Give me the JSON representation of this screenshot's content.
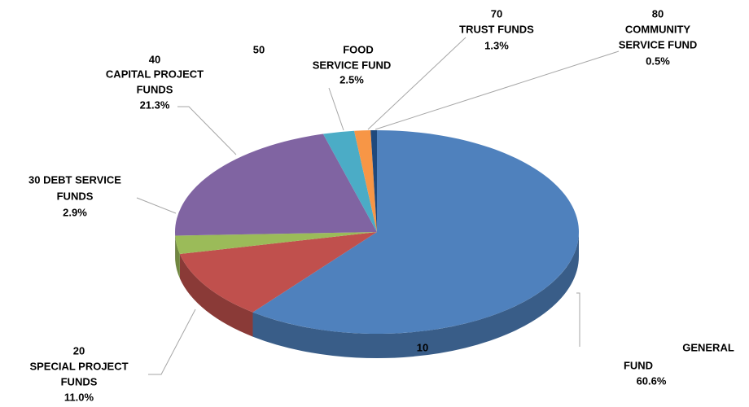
{
  "chart_data": {
    "type": "pie",
    "categories": [
      [
        "10",
        "GENERAL",
        "FUND"
      ],
      [
        "20",
        "SPECIAL PROJECT",
        "FUNDS"
      ],
      [
        "30 DEBT SERVICE",
        "FUNDS"
      ],
      [
        "40",
        "CAPITAL PROJECT",
        "FUNDS"
      ],
      [
        "50",
        "FOOD",
        "SERVICE FUND"
      ],
      [
        "70",
        "TRUST FUNDS"
      ],
      [
        "80",
        "COMMUNITY",
        "SERVICE FUND"
      ]
    ],
    "values": [
      60.6,
      11.0,
      2.9,
      21.3,
      2.5,
      1.3,
      0.5
    ],
    "value_labels": [
      "60.6%",
      "11.0%",
      "2.9%",
      "21.3%",
      "2.5%",
      "1.3%",
      "0.5%"
    ],
    "colors": [
      "#4f81bd",
      "#c0504d",
      "#9bbb59",
      "#8064a2",
      "#4bacc6",
      "#f79646",
      "#1f497d"
    ]
  }
}
